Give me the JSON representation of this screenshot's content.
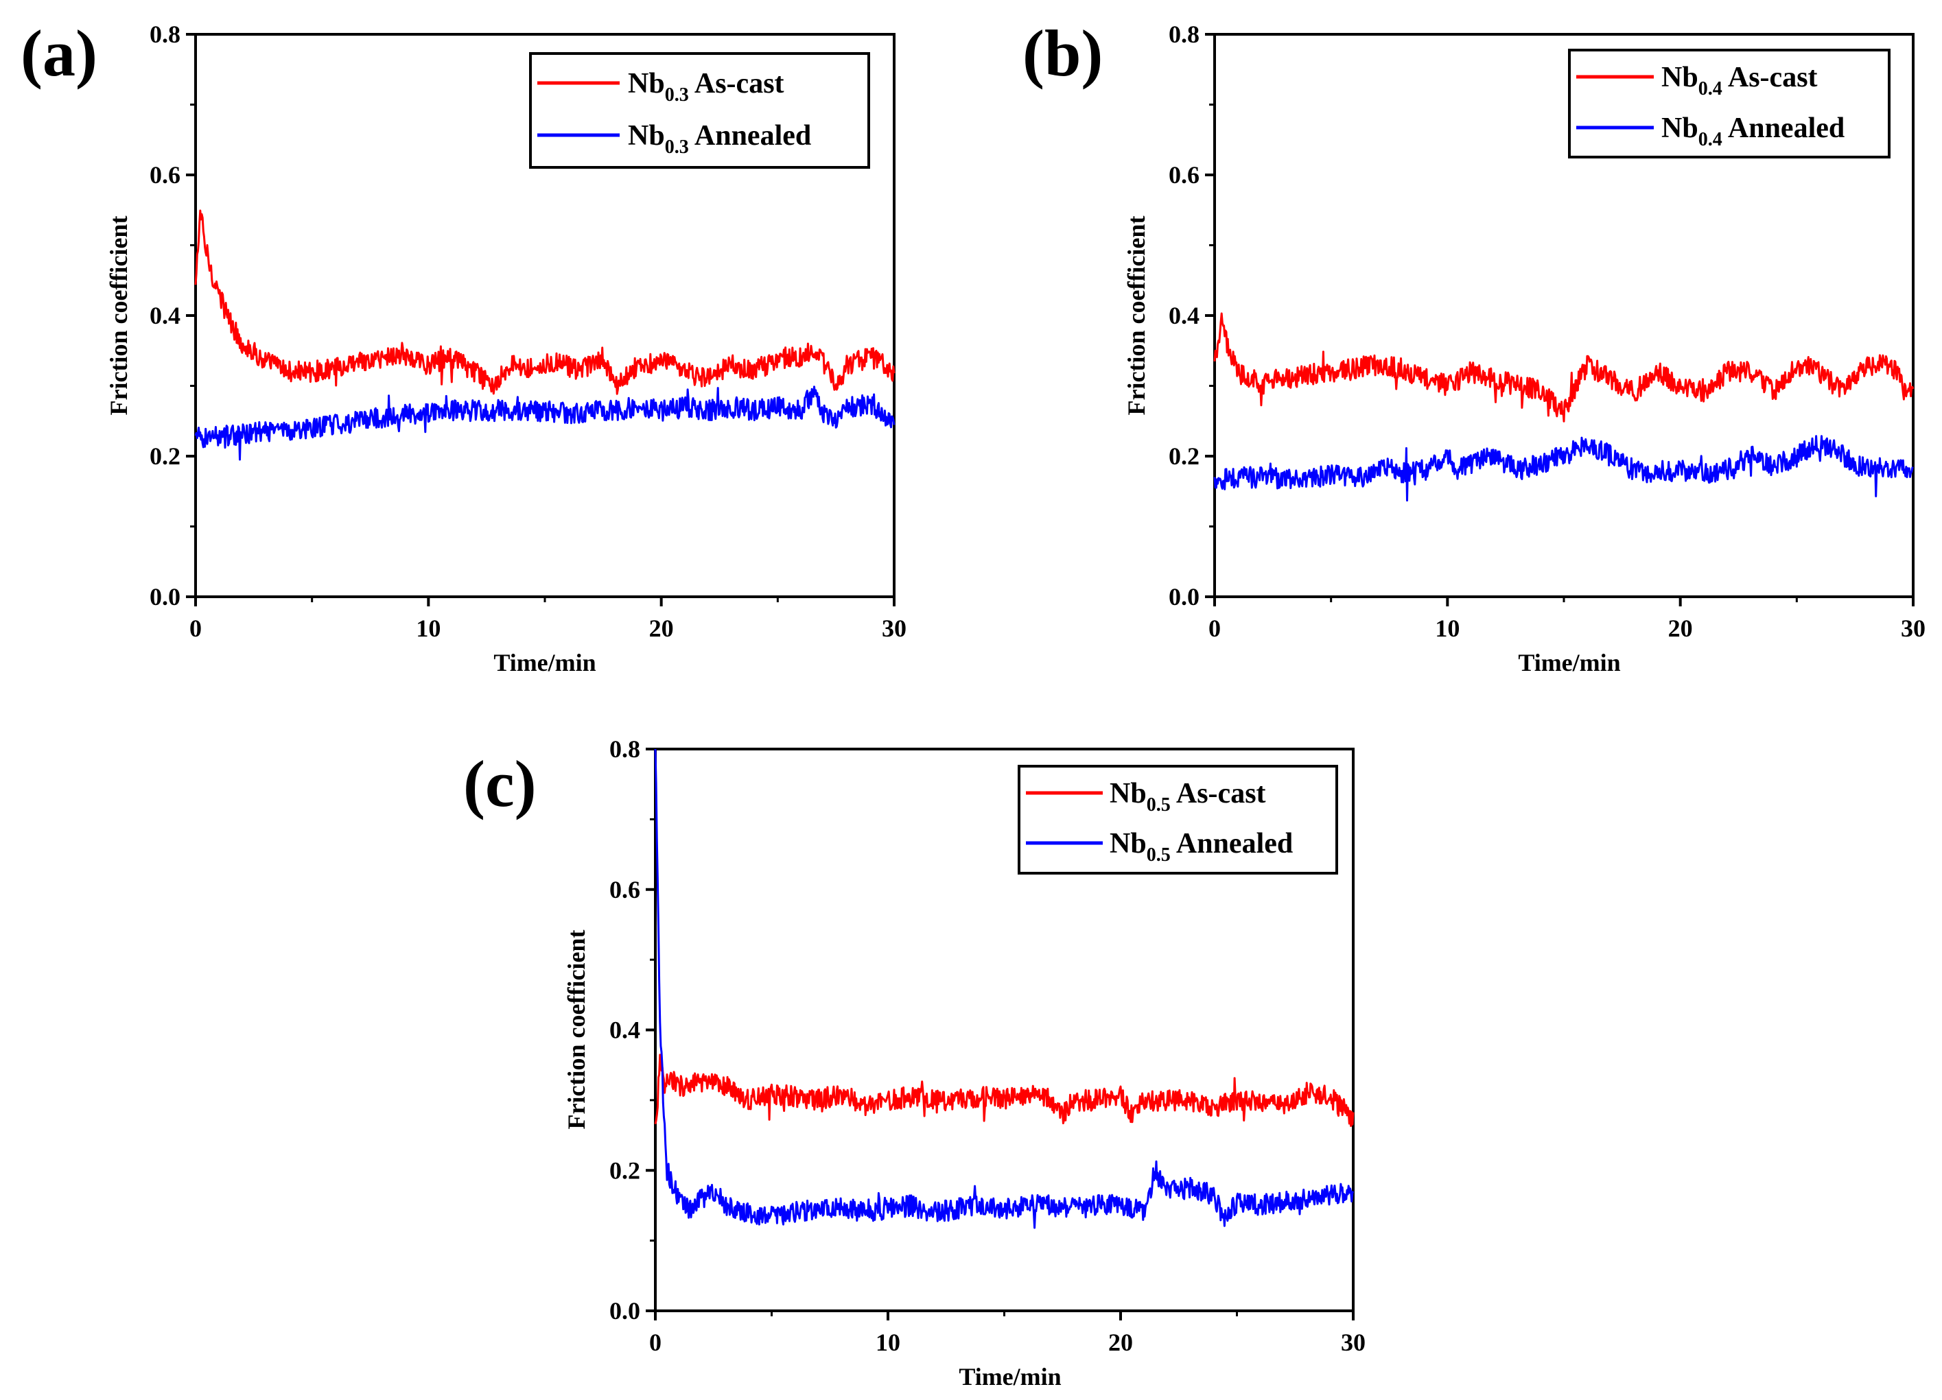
{
  "colors": {
    "as_cast": "#ff0000",
    "annealed": "#0000ff",
    "axis": "#000000"
  },
  "chart_data": [
    {
      "panel": "(a)",
      "type": "line",
      "xlabel": "Time/min",
      "ylabel": "Friction coefficient",
      "xlim": [
        0,
        30
      ],
      "ylim": [
        0.0,
        0.8
      ],
      "xticks": [
        "0",
        "10",
        "20",
        "30"
      ],
      "yticks": [
        "0.0",
        "0.2",
        "0.4",
        "0.6",
        "0.8"
      ],
      "legend_position": "top-right",
      "series": [
        {
          "name": "Nb0.3 As-cast",
          "legend_main": "Nb",
          "legend_sub": "0.3",
          "legend_rest": " As-cast",
          "color": "#ff0000",
          "x": [
            0,
            0.2,
            0.4,
            0.7,
            1.0,
            1.5,
            2,
            3,
            4,
            5,
            6,
            7,
            8,
            8.7,
            9.5,
            10,
            11,
            12,
            12.7,
            13.5,
            14.5,
            15.5,
            16.5,
            17.5,
            18,
            19,
            20,
            21,
            22,
            23,
            24,
            25,
            26,
            26.5,
            27,
            27.5,
            28,
            29,
            29.5,
            30
          ],
          "y": [
            0.44,
            0.55,
            0.5,
            0.46,
            0.43,
            0.39,
            0.36,
            0.335,
            0.32,
            0.32,
            0.325,
            0.33,
            0.34,
            0.345,
            0.335,
            0.33,
            0.34,
            0.32,
            0.3,
            0.33,
            0.325,
            0.335,
            0.32,
            0.34,
            0.3,
            0.33,
            0.335,
            0.32,
            0.31,
            0.33,
            0.32,
            0.34,
            0.34,
            0.355,
            0.33,
            0.3,
            0.33,
            0.34,
            0.335,
            0.32
          ]
        },
        {
          "name": "Nb0.3 Annealed",
          "legend_main": "Nb",
          "legend_sub": "0.3",
          "legend_rest": " Annealed",
          "color": "#0000ff",
          "x": [
            0,
            1,
            2,
            3,
            4,
            5,
            6,
            7,
            8,
            9,
            10,
            11,
            12,
            13,
            14,
            15,
            16,
            17,
            18,
            19,
            20,
            21,
            22,
            23,
            24,
            25,
            26,
            26.5,
            27,
            27.5,
            28,
            29,
            29.5,
            30
          ],
          "y": [
            0.225,
            0.23,
            0.23,
            0.235,
            0.235,
            0.24,
            0.245,
            0.25,
            0.255,
            0.26,
            0.262,
            0.265,
            0.265,
            0.265,
            0.262,
            0.265,
            0.26,
            0.265,
            0.265,
            0.27,
            0.265,
            0.27,
            0.265,
            0.27,
            0.265,
            0.27,
            0.265,
            0.29,
            0.26,
            0.255,
            0.27,
            0.275,
            0.26,
            0.245
          ]
        }
      ]
    },
    {
      "panel": "(b)",
      "type": "line",
      "xlabel": "Time/min",
      "ylabel": "Friction coefficient",
      "xlim": [
        0,
        30
      ],
      "ylim": [
        0.0,
        0.8
      ],
      "xticks": [
        "0",
        "10",
        "20",
        "30"
      ],
      "yticks": [
        "0.0",
        "0.2",
        "0.4",
        "0.6",
        "0.8"
      ],
      "legend_position": "top-right",
      "series": [
        {
          "name": "Nb0.4 As-cast",
          "legend_main": "Nb",
          "legend_sub": "0.4",
          "legend_rest": " As-cast",
          "color": "#ff0000",
          "x": [
            0,
            0.3,
            0.6,
            1,
            1.5,
            2,
            3,
            4,
            5,
            6,
            7,
            8,
            9,
            10,
            11,
            12,
            13,
            14,
            15,
            15.5,
            16,
            16.5,
            17,
            18,
            19,
            20,
            21,
            22,
            23,
            24,
            25,
            26,
            27,
            28,
            29,
            30
          ],
          "y": [
            0.33,
            0.39,
            0.35,
            0.32,
            0.31,
            0.305,
            0.31,
            0.315,
            0.32,
            0.325,
            0.33,
            0.325,
            0.31,
            0.3,
            0.32,
            0.31,
            0.3,
            0.295,
            0.26,
            0.3,
            0.33,
            0.32,
            0.31,
            0.29,
            0.32,
            0.3,
            0.29,
            0.32,
            0.32,
            0.29,
            0.33,
            0.32,
            0.29,
            0.33,
            0.33,
            0.285
          ]
        },
        {
          "name": "Nb0.4 Annealed",
          "legend_main": "Nb",
          "legend_sub": "0.4",
          "legend_rest": " Annealed",
          "color": "#0000ff",
          "x": [
            0,
            1,
            2,
            3,
            4,
            5,
            6,
            7,
            7.5,
            8,
            9,
            10,
            10.5,
            11,
            12,
            13,
            14,
            15,
            16,
            17,
            18,
            19,
            20,
            21,
            22,
            23,
            24,
            25,
            26,
            27,
            28,
            29,
            30
          ],
          "y": [
            0.165,
            0.17,
            0.17,
            0.168,
            0.17,
            0.172,
            0.17,
            0.175,
            0.19,
            0.175,
            0.18,
            0.2,
            0.18,
            0.19,
            0.2,
            0.18,
            0.19,
            0.2,
            0.22,
            0.2,
            0.18,
            0.175,
            0.18,
            0.175,
            0.18,
            0.2,
            0.185,
            0.2,
            0.22,
            0.2,
            0.18,
            0.185,
            0.18
          ]
        }
      ]
    },
    {
      "panel": "(c)",
      "type": "line",
      "xlabel": "Time/min",
      "ylabel": "Friction coefficient",
      "xlim": [
        0,
        30
      ],
      "ylim": [
        0.0,
        0.8
      ],
      "xticks": [
        "0",
        "10",
        "20",
        "30"
      ],
      "yticks": [
        "0.0",
        "0.2",
        "0.4",
        "0.6",
        "0.8"
      ],
      "legend_position": "top-right",
      "series": [
        {
          "name": "Nb0.5 As-cast",
          "legend_main": "Nb",
          "legend_sub": "0.5",
          "legend_rest": " As-cast",
          "color": "#ff0000",
          "x": [
            0,
            0.2,
            0.4,
            0.7,
            1,
            2,
            3,
            4,
            5,
            6,
            7,
            8,
            9,
            10,
            11,
            12,
            13,
            14,
            15,
            16,
            17,
            17.5,
            18,
            19,
            20,
            20.5,
            21,
            22,
            23,
            24,
            25,
            26,
            27,
            28,
            29,
            30
          ],
          "y": [
            0.26,
            0.35,
            0.32,
            0.33,
            0.32,
            0.325,
            0.32,
            0.3,
            0.31,
            0.305,
            0.3,
            0.31,
            0.29,
            0.3,
            0.305,
            0.3,
            0.3,
            0.305,
            0.3,
            0.31,
            0.3,
            0.28,
            0.3,
            0.3,
            0.305,
            0.28,
            0.3,
            0.3,
            0.3,
            0.29,
            0.3,
            0.3,
            0.29,
            0.31,
            0.305,
            0.275
          ]
        },
        {
          "name": "Nb0.5 Annealed",
          "legend_main": "Nb",
          "legend_sub": "0.5",
          "legend_rest": " Annealed",
          "color": "#0000ff",
          "x": [
            0,
            0.1,
            0.2,
            0.35,
            0.5,
            0.8,
            1.2,
            1.6,
            2,
            2.5,
            3,
            4,
            5,
            6,
            7,
            8,
            9,
            10,
            11,
            12,
            13,
            14,
            15,
            16,
            17,
            18,
            19,
            20,
            21,
            21.5,
            22,
            23,
            24,
            24.5,
            25,
            26,
            27,
            28,
            29,
            30
          ],
          "y": [
            0.8,
            0.6,
            0.4,
            0.3,
            0.2,
            0.175,
            0.15,
            0.145,
            0.16,
            0.17,
            0.15,
            0.14,
            0.135,
            0.14,
            0.145,
            0.15,
            0.14,
            0.145,
            0.15,
            0.14,
            0.145,
            0.15,
            0.145,
            0.15,
            0.15,
            0.145,
            0.15,
            0.15,
            0.14,
            0.2,
            0.17,
            0.175,
            0.165,
            0.13,
            0.155,
            0.15,
            0.155,
            0.16,
            0.165,
            0.17
          ]
        }
      ]
    }
  ]
}
